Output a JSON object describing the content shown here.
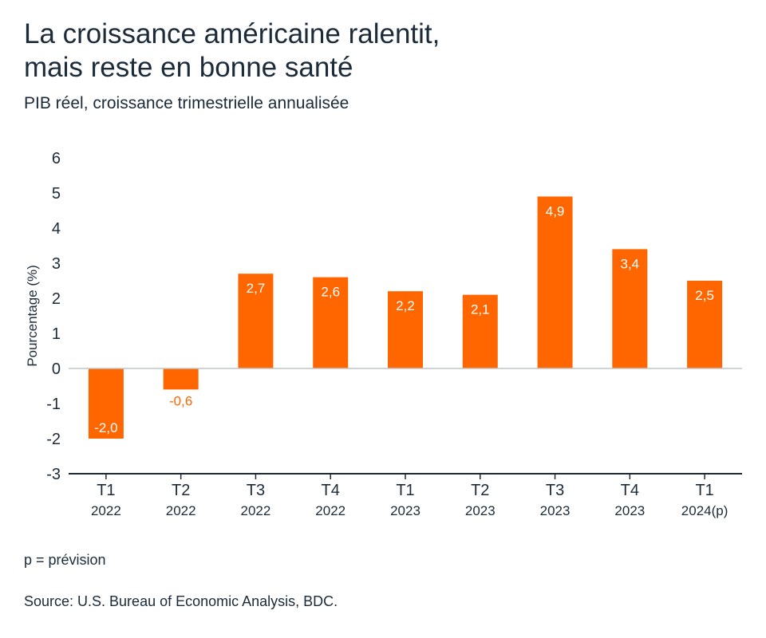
{
  "header": {
    "title_line1": "La croissance américaine ralentit,",
    "title_line2": "mais reste en bonne santé",
    "subtitle": "PIB réel, croissance trimestrielle annualisée"
  },
  "footer": {
    "note": "p = prévision",
    "source": "Source: U.S. Bureau of Economic Analysis, BDC."
  },
  "colors": {
    "bar": "#ff6600",
    "text": "#1c2b39",
    "zero_line": "#bfc5cc",
    "axis_line": "#1c2b39"
  },
  "chart_data": {
    "type": "bar",
    "title": "La croissance américaine ralentit, mais reste en bonne santé",
    "subtitle": "PIB réel, croissance trimestrielle annualisée",
    "ylabel": "Pourcentage (%)",
    "xlabel": "",
    "ylim": [
      -3,
      6
    ],
    "yticks": [
      "-3",
      "-2",
      "-1",
      "0",
      "1",
      "2",
      "3",
      "4",
      "5",
      "6"
    ],
    "grid": false,
    "categories": [
      {
        "quarter": "T1",
        "year": "2022"
      },
      {
        "quarter": "T2",
        "year": "2022"
      },
      {
        "quarter": "T3",
        "year": "2022"
      },
      {
        "quarter": "T4",
        "year": "2022"
      },
      {
        "quarter": "T1",
        "year": "2023"
      },
      {
        "quarter": "T2",
        "year": "2023"
      },
      {
        "quarter": "T3",
        "year": "2023"
      },
      {
        "quarter": "T4",
        "year": "2023"
      },
      {
        "quarter": "T1",
        "year": "2024(p)"
      }
    ],
    "values": [
      -2.0,
      -0.6,
      2.7,
      2.6,
      2.2,
      2.1,
      4.9,
      3.4,
      2.5
    ],
    "labels": [
      "-2,0",
      "-0,6",
      "2,7",
      "2,6",
      "2,2",
      "2,1",
      "4,9",
      "3,4",
      "2,5"
    ]
  }
}
